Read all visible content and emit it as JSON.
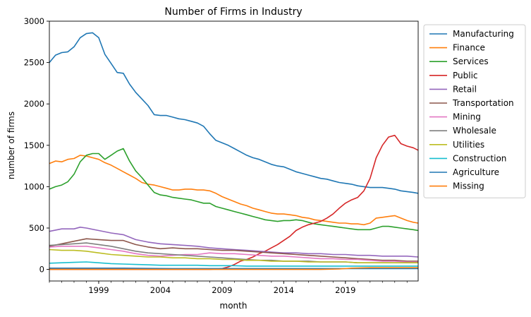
{
  "chart_data": {
    "type": "line",
    "title": "Number of Firms in Industry",
    "xlabel": "month",
    "ylabel": "number of firms",
    "xlim": [
      1995.0,
      2024.9
    ],
    "ylim": [
      -140,
      3000
    ],
    "x_ticks": [
      {
        "x": 1999.0,
        "label": "1999"
      },
      {
        "x": 2004.0,
        "label": "2004"
      },
      {
        "x": 2009.0,
        "label": "2009"
      },
      {
        "x": 2014.0,
        "label": "2014"
      },
      {
        "x": 2019.0,
        "label": "2019"
      }
    ],
    "y_ticks": [
      0,
      500,
      1000,
      1500,
      2000,
      2500,
      3000
    ],
    "grid": false,
    "legend_position": "outside-right-top",
    "series": [
      {
        "name": "Manufacturing",
        "color": "#1f77b4",
        "x": [
          1995.0,
          1995.5,
          1996.0,
          1996.5,
          1997.0,
          1997.5,
          1998.0,
          1998.5,
          1999.0,
          1999.5,
          2000.0,
          2000.5,
          2001.0,
          2001.5,
          2002.0,
          2002.5,
          2003.0,
          2003.5,
          2004.0,
          2004.5,
          2005.0,
          2005.5,
          2006.0,
          2006.5,
          2007.0,
          2007.5,
          2008.0,
          2008.5,
          2009.0,
          2009.5,
          2010.0,
          2010.5,
          2011.0,
          2011.5,
          2012.0,
          2012.5,
          2013.0,
          2013.5,
          2014.0,
          2014.5,
          2015.0,
          2015.5,
          2016.0,
          2016.5,
          2017.0,
          2017.5,
          2018.0,
          2018.5,
          2019.0,
          2019.5,
          2020.0,
          2020.5,
          2021.0,
          2021.5,
          2022.0,
          2022.5,
          2023.0,
          2023.5,
          2024.0,
          2024.5,
          2024.9
        ],
        "y": [
          2500,
          2590,
          2620,
          2630,
          2690,
          2800,
          2850,
          2860,
          2800,
          2600,
          2490,
          2380,
          2370,
          2240,
          2140,
          2060,
          1980,
          1870,
          1860,
          1860,
          1840,
          1820,
          1810,
          1790,
          1770,
          1730,
          1640,
          1560,
          1530,
          1500,
          1460,
          1420,
          1380,
          1350,
          1330,
          1300,
          1270,
          1250,
          1240,
          1210,
          1180,
          1160,
          1140,
          1120,
          1100,
          1090,
          1070,
          1050,
          1040,
          1030,
          1010,
          1000,
          990,
          990,
          990,
          980,
          970,
          950,
          940,
          930,
          920
        ]
      },
      {
        "name": "Finance",
        "color": "#ff7f0e",
        "x": [
          1995.0,
          1995.5,
          1996.0,
          1996.5,
          1997.0,
          1997.5,
          1998.0,
          1998.5,
          1999.0,
          1999.5,
          2000.0,
          2000.5,
          2001.0,
          2001.5,
          2002.0,
          2002.5,
          2003.0,
          2003.5,
          2004.0,
          2004.5,
          2005.0,
          2005.5,
          2006.0,
          2006.5,
          2007.0,
          2007.5,
          2008.0,
          2008.5,
          2009.0,
          2009.5,
          2010.0,
          2010.5,
          2011.0,
          2011.5,
          2012.0,
          2012.5,
          2013.0,
          2013.5,
          2014.0,
          2014.5,
          2015.0,
          2015.5,
          2016.0,
          2016.5,
          2017.0,
          2017.5,
          2018.0,
          2018.5,
          2019.0,
          2019.5,
          2020.0,
          2020.5,
          2021.0,
          2021.5,
          2022.0,
          2022.5,
          2023.0,
          2023.5,
          2024.0,
          2024.5,
          2024.9
        ],
        "y": [
          1280,
          1310,
          1300,
          1330,
          1340,
          1380,
          1370,
          1350,
          1330,
          1290,
          1260,
          1220,
          1180,
          1140,
          1100,
          1050,
          1030,
          1020,
          1000,
          980,
          960,
          960,
          970,
          970,
          960,
          960,
          950,
          920,
          880,
          850,
          820,
          790,
          770,
          740,
          720,
          700,
          680,
          670,
          670,
          660,
          650,
          630,
          620,
          600,
          590,
          580,
          570,
          560,
          560,
          550,
          550,
          540,
          560,
          620,
          630,
          640,
          650,
          620,
          590,
          570,
          560
        ]
      },
      {
        "name": "Services",
        "color": "#2ca02c",
        "x": [
          1995.0,
          1995.5,
          1996.0,
          1996.5,
          1997.0,
          1997.5,
          1998.0,
          1998.5,
          1999.0,
          1999.5,
          2000.0,
          2000.5,
          2001.0,
          2001.5,
          2002.0,
          2002.5,
          2003.0,
          2003.5,
          2004.0,
          2004.5,
          2005.0,
          2005.5,
          2006.0,
          2006.5,
          2007.0,
          2007.5,
          2008.0,
          2008.5,
          2009.0,
          2009.5,
          2010.0,
          2010.5,
          2011.0,
          2011.5,
          2012.0,
          2012.5,
          2013.0,
          2013.5,
          2014.0,
          2014.5,
          2015.0,
          2015.5,
          2016.0,
          2016.5,
          2017.0,
          2017.5,
          2018.0,
          2018.5,
          2019.0,
          2019.5,
          2020.0,
          2020.5,
          2021.0,
          2021.5,
          2022.0,
          2022.5,
          2023.0,
          2023.5,
          2024.0,
          2024.5,
          2024.9
        ],
        "y": [
          970,
          1000,
          1020,
          1060,
          1150,
          1300,
          1380,
          1400,
          1400,
          1330,
          1380,
          1430,
          1460,
          1310,
          1190,
          1110,
          1020,
          930,
          900,
          890,
          870,
          860,
          850,
          840,
          820,
          800,
          800,
          760,
          740,
          720,
          700,
          680,
          660,
          640,
          620,
          600,
          590,
          580,
          590,
          590,
          600,
          590,
          570,
          550,
          540,
          530,
          520,
          510,
          500,
          490,
          480,
          480,
          480,
          500,
          520,
          520,
          510,
          500,
          490,
          480,
          470
        ]
      },
      {
        "name": "Public",
        "color": "#d62728",
        "x": [
          1995.0,
          1996.0,
          1997.0,
          1998.0,
          1999.0,
          2000.0,
          2001.0,
          2002.0,
          2003.0,
          2004.0,
          2005.0,
          2006.0,
          2007.0,
          2008.0,
          2008.5,
          2009.0,
          2009.5,
          2010.0,
          2010.5,
          2011.0,
          2011.5,
          2012.0,
          2012.5,
          2013.0,
          2013.5,
          2014.0,
          2014.5,
          2015.0,
          2015.5,
          2016.0,
          2016.5,
          2017.0,
          2017.5,
          2018.0,
          2018.5,
          2019.0,
          2019.5,
          2020.0,
          2020.5,
          2021.0,
          2021.5,
          2022.0,
          2022.5,
          2023.0,
          2023.5,
          2024.0,
          2024.5,
          2024.9
        ],
        "y": [
          0,
          0,
          0,
          0,
          0,
          0,
          0,
          0,
          0,
          0,
          0,
          0,
          0,
          0,
          5,
          10,
          30,
          60,
          100,
          120,
          150,
          190,
          220,
          260,
          300,
          350,
          400,
          470,
          510,
          540,
          560,
          580,
          620,
          670,
          740,
          800,
          840,
          870,
          950,
          1100,
          1350,
          1500,
          1600,
          1620,
          1520,
          1490,
          1470,
          1440
        ]
      },
      {
        "name": "Retail",
        "color": "#9467bd",
        "x": [
          1995.0,
          1996.0,
          1997.0,
          1997.5,
          1998.0,
          1999.0,
          2000.0,
          2001.0,
          2002.0,
          2003.0,
          2004.0,
          2005.0,
          2006.0,
          2007.0,
          2008.0,
          2009.0,
          2010.0,
          2011.0,
          2012.0,
          2013.0,
          2014.0,
          2015.0,
          2016.0,
          2017.0,
          2018.0,
          2019.0,
          2020.0,
          2021.0,
          2022.0,
          2023.0,
          2024.0,
          2024.9
        ],
        "y": [
          460,
          490,
          490,
          510,
          500,
          470,
          440,
          420,
          360,
          330,
          310,
          300,
          290,
          280,
          260,
          250,
          240,
          230,
          220,
          210,
          200,
          200,
          190,
          190,
          180,
          180,
          170,
          170,
          160,
          160,
          160,
          150
        ]
      },
      {
        "name": "Transportation",
        "color": "#8c564b",
        "x": [
          1995.0,
          1996.0,
          1997.0,
          1998.0,
          1999.0,
          2000.0,
          2001.0,
          2002.0,
          2003.0,
          2004.0,
          2005.0,
          2006.0,
          2007.0,
          2008.0,
          2009.0,
          2010.0,
          2011.0,
          2012.0,
          2013.0,
          2014.0,
          2015.0,
          2016.0,
          2017.0,
          2018.0,
          2019.0,
          2020.0,
          2021.0,
          2022.0,
          2023.0,
          2024.0,
          2024.9
        ],
        "y": [
          280,
          310,
          340,
          370,
          360,
          350,
          350,
          300,
          270,
          250,
          260,
          250,
          250,
          240,
          230,
          230,
          220,
          210,
          200,
          190,
          180,
          170,
          160,
          150,
          140,
          130,
          120,
          110,
          110,
          100,
          100
        ]
      },
      {
        "name": "Mining",
        "color": "#e377c2",
        "x": [
          1995.0,
          1996.0,
          1997.0,
          1998.0,
          1999.0,
          2000.0,
          2001.0,
          2002.0,
          2003.0,
          2004.0,
          2005.0,
          2006.0,
          2007.0,
          2008.0,
          2009.0,
          2010.0,
          2011.0,
          2012.0,
          2013.0,
          2014.0,
          2015.0,
          2016.0,
          2017.0,
          2018.0,
          2019.0,
          2020.0,
          2021.0,
          2022.0,
          2023.0,
          2024.0,
          2024.9
        ],
        "y": [
          270,
          280,
          280,
          280,
          260,
          240,
          220,
          190,
          170,
          160,
          170,
          180,
          180,
          200,
          190,
          190,
          180,
          170,
          160,
          160,
          150,
          140,
          130,
          130,
          120,
          120,
          110,
          100,
          100,
          90,
          90
        ]
      },
      {
        "name": "Wholesale",
        "color": "#7f7f7f",
        "x": [
          1995.0,
          1996.0,
          1997.0,
          1998.0,
          1999.0,
          2000.0,
          2001.0,
          2002.0,
          2003.0,
          2004.0,
          2005.0,
          2006.0,
          2007.0,
          2008.0,
          2009.0,
          2010.0,
          2011.0,
          2012.0,
          2013.0,
          2014.0,
          2015.0,
          2016.0,
          2017.0,
          2018.0,
          2019.0,
          2020.0,
          2021.0,
          2022.0,
          2023.0,
          2024.0,
          2024.9
        ],
        "y": [
          290,
          300,
          310,
          320,
          300,
          280,
          250,
          220,
          200,
          190,
          180,
          170,
          160,
          150,
          140,
          130,
          120,
          110,
          110,
          100,
          100,
          100,
          90,
          90,
          90,
          80,
          80,
          80,
          80,
          80,
          80
        ]
      },
      {
        "name": "Utilities",
        "color": "#bcbd22",
        "x": [
          1995.0,
          1996.0,
          1997.0,
          1998.0,
          1999.0,
          2000.0,
          2001.0,
          2002.0,
          2003.0,
          2004.0,
          2005.0,
          2006.0,
          2007.0,
          2008.0,
          2009.0,
          2010.0,
          2011.0,
          2012.0,
          2013.0,
          2014.0,
          2015.0,
          2016.0,
          2017.0,
          2018.0,
          2019.0,
          2020.0,
          2021.0,
          2022.0,
          2023.0,
          2024.0,
          2024.9
        ],
        "y": [
          240,
          230,
          230,
          220,
          200,
          180,
          170,
          160,
          150,
          150,
          140,
          140,
          130,
          130,
          120,
          120,
          110,
          110,
          100,
          100,
          100,
          90,
          90,
          90,
          90,
          80,
          80,
          80,
          80,
          80,
          80
        ]
      },
      {
        "name": "Construction",
        "color": "#17becf",
        "x": [
          1995.0,
          1996.0,
          1997.0,
          1998.0,
          1999.0,
          2000.0,
          2001.0,
          2002.0,
          2003.0,
          2004.0,
          2005.0,
          2006.0,
          2007.0,
          2008.0,
          2009.0,
          2010.0,
          2011.0,
          2012.0,
          2013.0,
          2014.0,
          2015.0,
          2016.0,
          2017.0,
          2018.0,
          2019.0,
          2020.0,
          2021.0,
          2022.0,
          2023.0,
          2024.0,
          2024.9
        ],
        "y": [
          75,
          80,
          85,
          90,
          80,
          70,
          65,
          60,
          55,
          50,
          50,
          50,
          50,
          45,
          45,
          45,
          40,
          40,
          40,
          40,
          40,
          40,
          40,
          40,
          40,
          40,
          40,
          40,
          40,
          40,
          40
        ]
      },
      {
        "name": "Agriculture",
        "color": "#1f77b4",
        "x": [
          1995.0,
          1997.0,
          1999.0,
          2001.0,
          2003.0,
          2005.0,
          2007.0,
          2009.0,
          2011.0,
          2013.0,
          2015.0,
          2017.0,
          2019.0,
          2021.0,
          2023.0,
          2024.9
        ],
        "y": [
          15,
          15,
          15,
          15,
          12,
          10,
          10,
          10,
          10,
          10,
          10,
          10,
          10,
          10,
          10,
          10
        ]
      },
      {
        "name": "Missing",
        "color": "#ff7f0e",
        "x": [
          1995.0,
          1997.0,
          1999.0,
          2001.0,
          2003.0,
          2005.0,
          2007.0,
          2009.0,
          2011.0,
          2013.0,
          2015.0,
          2017.0,
          2018.5,
          2019.5,
          2021.0,
          2023.0,
          2024.9
        ],
        "y": [
          0,
          0,
          0,
          0,
          0,
          0,
          0,
          0,
          0,
          0,
          0,
          0,
          5,
          15,
          20,
          20,
          20
        ]
      }
    ]
  }
}
